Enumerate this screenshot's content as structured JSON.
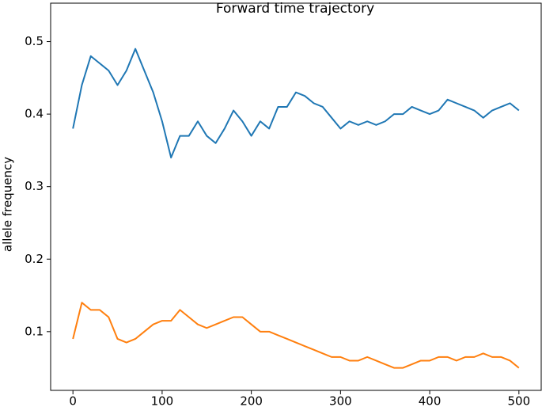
{
  "chart_data": {
    "type": "line",
    "title": "Forward time trajectory",
    "y_label": "allele frequency",
    "x": [
      0,
      10,
      20,
      30,
      40,
      50,
      60,
      70,
      80,
      90,
      100,
      110,
      120,
      130,
      140,
      150,
      160,
      170,
      180,
      190,
      200,
      210,
      220,
      230,
      240,
      250,
      260,
      270,
      280,
      290,
      300,
      310,
      320,
      330,
      340,
      350,
      360,
      370,
      380,
      390,
      400,
      410,
      420,
      430,
      440,
      450,
      460,
      470,
      480,
      490,
      500
    ],
    "series": [
      {
        "color": "#1f77b4",
        "values": [
          0.38,
          0.44,
          0.48,
          0.47,
          0.46,
          0.44,
          0.46,
          0.49,
          0.46,
          0.43,
          0.39,
          0.34,
          0.37,
          0.37,
          0.39,
          0.37,
          0.36,
          0.38,
          0.405,
          0.39,
          0.37,
          0.39,
          0.38,
          0.41,
          0.41,
          0.43,
          0.425,
          0.415,
          0.41,
          0.395,
          0.38,
          0.39,
          0.385,
          0.39,
          0.385,
          0.39,
          0.4,
          0.4,
          0.41,
          0.405,
          0.4,
          0.405,
          0.42,
          0.415,
          0.41,
          0.405,
          0.395,
          0.405,
          0.41,
          0.415,
          0.405
        ]
      },
      {
        "color": "#ff7f0e",
        "values": [
          0.09,
          0.14,
          0.13,
          0.13,
          0.12,
          0.09,
          0.085,
          0.09,
          0.1,
          0.11,
          0.115,
          0.115,
          0.13,
          0.12,
          0.11,
          0.105,
          0.11,
          0.115,
          0.12,
          0.12,
          0.11,
          0.1,
          0.1,
          0.095,
          0.09,
          0.085,
          0.08,
          0.075,
          0.07,
          0.065,
          0.065,
          0.06,
          0.06,
          0.065,
          0.06,
          0.055,
          0.05,
          0.05,
          0.055,
          0.06,
          0.06,
          0.065,
          0.065,
          0.06,
          0.065,
          0.065,
          0.07,
          0.065,
          0.065,
          0.06,
          0.05
        ]
      }
    ],
    "xlim": [
      -25,
      525
    ],
    "ylim": [
      0.019,
      0.553
    ],
    "xticks": [
      0,
      100,
      200,
      300,
      400,
      500
    ],
    "yticks": [
      0.1,
      0.2,
      0.3,
      0.4,
      0.5
    ]
  }
}
